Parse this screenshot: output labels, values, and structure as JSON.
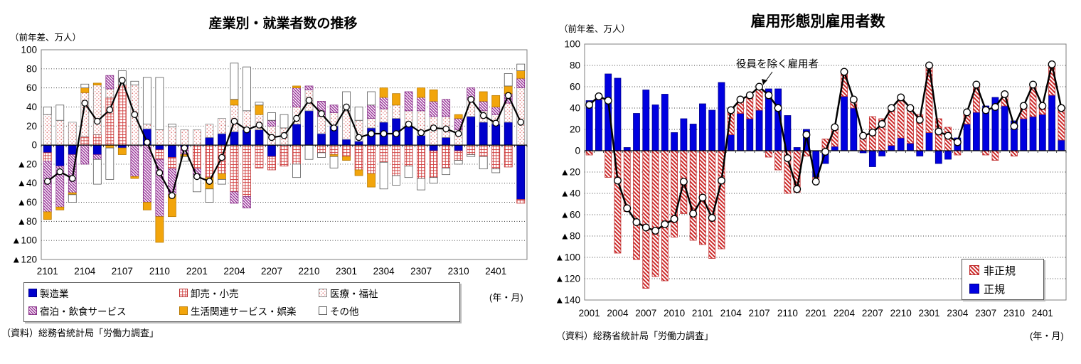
{
  "page": {
    "background": "#FFFFFF"
  },
  "chart_data": [
    {
      "type": "bar",
      "subtype": "stacked-bar-with-line-overlay",
      "title": "産業別・就業者数の推移",
      "unit_label": "（前年差、万人）",
      "x_axis_note": "(年・月)",
      "source": "（資料）総務省統計局「労働力調査」",
      "ylim": [
        -120,
        100
      ],
      "ytick_step": 20,
      "y_tick_labels": [
        "100",
        "80",
        "60",
        "40",
        "20",
        "0",
        "▲20",
        "▲40",
        "▲60",
        "▲80",
        "▲100",
        "▲120"
      ],
      "grid": "dotted-horizontal",
      "legend_position": "below",
      "categories": [
        "2101",
        "2102",
        "2103",
        "2104",
        "2105",
        "2106",
        "2107",
        "2108",
        "2109",
        "2110",
        "2111",
        "2112",
        "2201",
        "2202",
        "2203",
        "2204",
        "2205",
        "2206",
        "2207",
        "2208",
        "2209",
        "2210",
        "2211",
        "2212",
        "2301",
        "2302",
        "2303",
        "2304",
        "2305",
        "2306",
        "2307",
        "2308",
        "2309",
        "2310",
        "2311",
        "2312",
        "2401",
        "2402",
        "2403"
      ],
      "x_tick_labels": [
        "2101",
        "2104",
        "2107",
        "2110",
        "2201",
        "2204",
        "2207",
        "2210",
        "2301",
        "2304",
        "2307",
        "2310",
        "2401"
      ],
      "series": [
        {
          "name": "製造業",
          "pattern": "solid",
          "color": "#0000CC",
          "edge": "#00008B",
          "values": [
            -8,
            -22,
            -10,
            0,
            -10,
            0,
            -3,
            0,
            17,
            -5,
            -13,
            -2,
            0,
            8,
            12,
            14,
            16,
            16,
            -12,
            0,
            22,
            36,
            12,
            20,
            6,
            4,
            18,
            24,
            28,
            20,
            10,
            -6,
            8,
            -6,
            30,
            24,
            22,
            24,
            -57
          ]
        },
        {
          "name": "卸売・小売",
          "pattern": "crosshatch",
          "color": "#CC2020",
          "edge": "#C03030",
          "values": [
            -9,
            0,
            0,
            9,
            11,
            50,
            63,
            0,
            0,
            -10,
            -12,
            0,
            -25,
            -34,
            -30,
            -49,
            -54,
            -24,
            -14,
            -22,
            -20,
            0,
            -8,
            -10,
            -12,
            -26,
            -30,
            -18,
            -32,
            -22,
            -35,
            -28,
            -24,
            -10,
            -10,
            -12,
            -25,
            -23,
            -4
          ]
        },
        {
          "name": "医療・福祉",
          "pattern": "dots",
          "color": "#E07878",
          "edge": "#8C8C8C",
          "values": [
            32,
            26,
            24,
            46,
            52,
            9,
            0,
            63,
            5,
            16,
            19,
            16,
            16,
            14,
            16,
            28,
            20,
            16,
            20,
            18,
            18,
            22,
            18,
            14,
            30,
            22,
            10,
            14,
            14,
            16,
            26,
            30,
            22,
            16,
            18,
            12,
            10,
            20,
            60
          ]
        },
        {
          "name": "宿泊・飲食サービス",
          "pattern": "diag",
          "color": "#993399",
          "edge": "#883388",
          "values": [
            -53,
            -43,
            -40,
            -20,
            -5,
            14,
            0,
            -33,
            -60,
            -60,
            -27,
            -8,
            -6,
            0,
            0,
            -12,
            -12,
            0,
            6,
            0,
            20,
            4,
            16,
            8,
            0,
            0,
            14,
            12,
            0,
            20,
            14,
            16,
            18,
            12,
            12,
            10,
            8,
            10,
            10
          ]
        },
        {
          "name": "生活関連サービス・娯楽",
          "pattern": "solid",
          "color": "#F2A50C",
          "edge": "#B97A00",
          "values": [
            -8,
            -3,
            -2,
            5,
            2,
            -3,
            -7,
            -2,
            -8,
            -27,
            -23,
            -2,
            0,
            -12,
            -6,
            6,
            0,
            10,
            0,
            0,
            2,
            0,
            0,
            -2,
            -4,
            -6,
            -14,
            10,
            12,
            0,
            10,
            12,
            0,
            4,
            0,
            10,
            12,
            8,
            8
          ]
        },
        {
          "name": "その他",
          "pattern": "plain",
          "color": "#FFFFFF",
          "edge": "#595959",
          "values": [
            8,
            16,
            -8,
            4,
            -26,
            -33,
            15,
            4,
            49,
            55,
            3,
            -5,
            -18,
            -14,
            -5,
            38,
            46,
            3,
            8,
            14,
            -14,
            -15,
            -5,
            -12,
            20,
            14,
            14,
            -28,
            -10,
            -12,
            -12,
            -6,
            -7,
            -4,
            -2,
            -13,
            -4,
            13,
            7
          ]
        }
      ],
      "line": {
        "marker": "open-circle",
        "color": "#000000",
        "values": [
          -38,
          -28,
          -35,
          44,
          25,
          37,
          68,
          32,
          3,
          -29,
          -53,
          -3,
          -33,
          -38,
          -13,
          25,
          16,
          21,
          8,
          10,
          28,
          47,
          33,
          18,
          40,
          8,
          12,
          12,
          12,
          22,
          13,
          18,
          17,
          12,
          48,
          31,
          23,
          52,
          24
        ]
      }
    },
    {
      "type": "bar",
      "subtype": "stacked-bar-with-line-overlay",
      "title": "雇用形態別雇用者数",
      "unit_label": "（前年差、万人）",
      "x_axis_note": "(年・月)",
      "source": "（資料）総務省統計局「労働力調査」",
      "annotation": "役員を除く雇用者",
      "ylim": [
        -140,
        100
      ],
      "ytick_step": 20,
      "y_tick_labels": [
        "100",
        "80",
        "60",
        "40",
        "20",
        "0",
        "▲20",
        "▲40",
        "▲60",
        "▲80",
        "▲100",
        "▲120",
        "▲140"
      ],
      "grid": "dotted-horizontal",
      "legend_position": "inside-bottom-right",
      "categories": [
        "2001",
        "2002",
        "2003",
        "2004",
        "2005",
        "2006",
        "2007",
        "2008",
        "2009",
        "2010",
        "2011",
        "2012",
        "2101",
        "2102",
        "2103",
        "2104",
        "2105",
        "2106",
        "2107",
        "2108",
        "2109",
        "2110",
        "2111",
        "2112",
        "2201",
        "2202",
        "2203",
        "2204",
        "2205",
        "2206",
        "2207",
        "2208",
        "2209",
        "2210",
        "2211",
        "2212",
        "2301",
        "2302",
        "2303",
        "2304",
        "2305",
        "2306",
        "2307",
        "2308",
        "2309",
        "2310",
        "2311",
        "2312",
        "2401",
        "2402",
        "2403"
      ],
      "x_tick_labels": [
        "2001",
        "2004",
        "2007",
        "2010",
        "2101",
        "2104",
        "2107",
        "2110",
        "2201",
        "2204",
        "2207",
        "2210",
        "2301",
        "2304",
        "2307",
        "2310",
        "2401"
      ],
      "series": [
        {
          "name": "正規",
          "pattern": "solid",
          "color": "#0000E0",
          "edge": "#00008B",
          "values": [
            47,
            48,
            72,
            68,
            3,
            35,
            57,
            43,
            53,
            17,
            30,
            25,
            44,
            38,
            64,
            15,
            35,
            30,
            38,
            58,
            58,
            33,
            3,
            20,
            -25,
            -12,
            4,
            51,
            40,
            -2,
            -15,
            -5,
            5,
            12,
            7,
            -5,
            17,
            -12,
            -8,
            12,
            25,
            36,
            42,
            50,
            42,
            28,
            30,
            32,
            34,
            52,
            10
          ]
        },
        {
          "name": "非正規",
          "pattern": "diagR",
          "color": "#CC2828",
          "edge": "#C03030",
          "values": [
            -4,
            3,
            -25,
            -96,
            -57,
            -102,
            -129,
            -118,
            -122,
            -81,
            -59,
            -84,
            -88,
            -101,
            -92,
            23,
            13,
            22,
            22,
            -6,
            -18,
            -40,
            -39,
            -5,
            -4,
            11,
            18,
            23,
            8,
            16,
            32,
            30,
            35,
            38,
            33,
            34,
            63,
            30,
            22,
            -4,
            11,
            26,
            -4,
            -9,
            11,
            -5,
            12,
            30,
            8,
            29,
            30
          ]
        }
      ],
      "legend_order": [
        "非正規",
        "正規"
      ],
      "line": {
        "name": "役員を除く雇用者",
        "marker": "open-circle",
        "color": "#000000",
        "values": [
          43,
          51,
          47,
          -28,
          -54,
          -67,
          -72,
          -75,
          -69,
          -64,
          -29,
          -59,
          -44,
          -63,
          -28,
          38,
          48,
          52,
          60,
          52,
          40,
          -7,
          -36,
          15,
          -29,
          -1,
          22,
          74,
          48,
          14,
          17,
          25,
          40,
          50,
          40,
          29,
          80,
          18,
          14,
          8,
          36,
          62,
          38,
          41,
          53,
          23,
          42,
          62,
          42,
          81,
          40
        ]
      }
    }
  ]
}
